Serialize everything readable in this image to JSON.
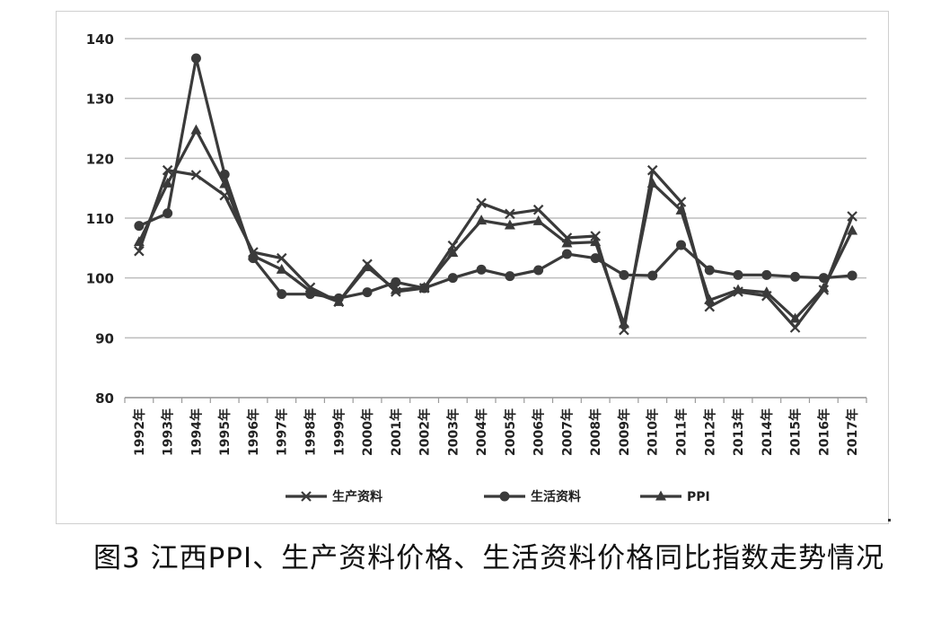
{
  "caption": "图3 江西PPI、生产资料价格、生活资料价格同比指数走势情况",
  "chart_data": {
    "type": "line",
    "title": "",
    "xlabel": "",
    "ylabel": "",
    "ylim": [
      80,
      140
    ],
    "yticks": [
      80,
      90,
      100,
      110,
      120,
      130,
      140
    ],
    "grid": "horizontal",
    "legend_position": "bottom",
    "categories": [
      "1992年",
      "1993年",
      "1994年",
      "1995年",
      "1996年",
      "1997年",
      "1998年",
      "1999年",
      "2000年",
      "2001年",
      "2002年",
      "2003年",
      "2004年",
      "2005年",
      "2006年",
      "2007年",
      "2008年",
      "2009年",
      "2010年",
      "2011年",
      "2012年",
      "2013年",
      "2014年",
      "2015年",
      "2016年",
      "2017年"
    ],
    "series": [
      {
        "name": "生产资料",
        "marker": "x",
        "color": "#3a3a3a",
        "values": [
          104.5,
          118.0,
          117.2,
          113.8,
          104.3,
          103.3,
          98.4,
          96.0,
          102.3,
          97.7,
          98.3,
          105.4,
          112.5,
          110.7,
          111.4,
          106.7,
          107.0,
          91.3,
          118.0,
          112.7,
          95.2,
          97.7,
          97.0,
          91.7,
          98.0,
          110.3
        ]
      },
      {
        "name": "生活资料",
        "marker": "circle",
        "color": "#3a3a3a",
        "values": [
          108.7,
          110.8,
          136.7,
          117.3,
          103.3,
          97.3,
          97.3,
          96.6,
          97.6,
          99.3,
          98.3,
          100.0,
          101.4,
          100.3,
          101.3,
          104.0,
          103.3,
          100.5,
          100.4,
          105.5,
          101.3,
          100.5,
          100.5,
          100.2,
          100.0,
          100.4
        ]
      },
      {
        "name": "PPI",
        "marker": "triangle",
        "color": "#3a3a3a",
        "values": [
          106.0,
          115.8,
          124.7,
          115.7,
          103.7,
          101.4,
          97.8,
          96.0,
          101.8,
          98.0,
          98.4,
          104.2,
          109.6,
          108.8,
          109.5,
          105.8,
          106.0,
          92.3,
          115.8,
          111.3,
          96.3,
          98.0,
          97.6,
          93.2,
          98.3,
          107.9
        ]
      }
    ]
  }
}
